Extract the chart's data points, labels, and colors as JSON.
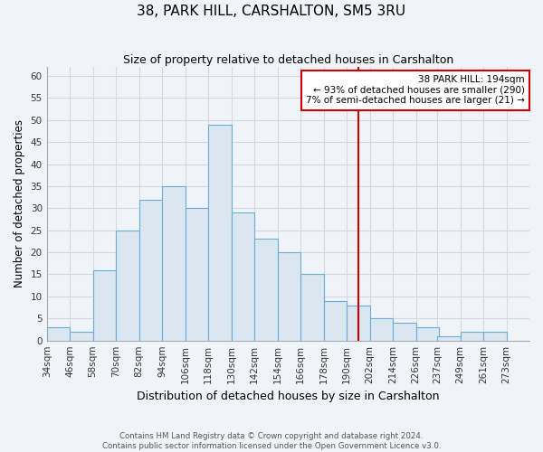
{
  "title": "38, PARK HILL, CARSHALTON, SM5 3RU",
  "subtitle": "Size of property relative to detached houses in Carshalton",
  "xlabel": "Distribution of detached houses by size in Carshalton",
  "ylabel": "Number of detached properties",
  "bin_labels": [
    "34sqm",
    "46sqm",
    "58sqm",
    "70sqm",
    "82sqm",
    "94sqm",
    "106sqm",
    "118sqm",
    "130sqm",
    "142sqm",
    "154sqm",
    "166sqm",
    "178sqm",
    "190sqm",
    "202sqm",
    "214sqm",
    "226sqm",
    "237sqm",
    "249sqm",
    "261sqm",
    "273sqm"
  ],
  "bar_heights": [
    3,
    2,
    16,
    25,
    32,
    35,
    30,
    49,
    29,
    23,
    20,
    15,
    9,
    8,
    5,
    4,
    3,
    1,
    2,
    2
  ],
  "bar_color": "#dae6f0",
  "bar_edge_color": "#6aaed6",
  "highlight_x": 196,
  "highlight_line_color": "#cc0000",
  "ylim": [
    0,
    62
  ],
  "yticks": [
    0,
    5,
    10,
    15,
    20,
    25,
    30,
    35,
    40,
    45,
    50,
    55,
    60
  ],
  "annotation_title": "38 PARK HILL: 194sqm",
  "annotation_line1": "← 93% of detached houses are smaller (290)",
  "annotation_line2": "7% of semi-detached houses are larger (21) →",
  "annotation_box_color": "#ffffff",
  "annotation_box_edge": "#cc0000",
  "footer_line1": "Contains HM Land Registry data © Crown copyright and database right 2024.",
  "footer_line2": "Contains public sector information licensed under the Open Government Licence v3.0.",
  "grid_color": "#d0d8e0",
  "background_color": "#f0f4f8",
  "bin_starts": [
    34,
    46,
    58,
    70,
    82,
    94,
    106,
    118,
    130,
    142,
    154,
    166,
    178,
    190,
    202,
    214,
    226,
    237,
    249,
    261
  ],
  "bin_width": 12,
  "xlim": [
    34,
    285
  ]
}
